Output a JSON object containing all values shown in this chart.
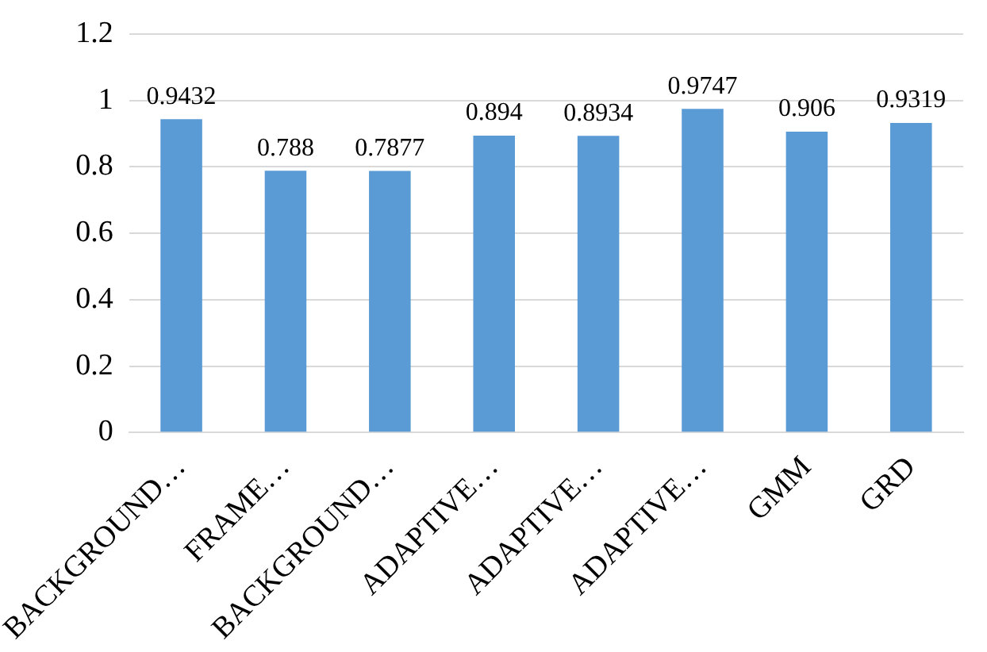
{
  "chart_data": {
    "type": "bar",
    "categories": [
      "BACKGROUND…",
      "FRAME…",
      "BACKGROUND…",
      "ADAPTIVE…",
      "ADAPTIVE…",
      "ADAPTIVE…",
      "GMM",
      "GRD"
    ],
    "values": [
      0.9432,
      0.788,
      0.7877,
      0.894,
      0.8934,
      0.9747,
      0.906,
      0.9319
    ],
    "color": "#5b9bd5",
    "ylim": [
      0,
      1.2
    ],
    "yticks": [
      0,
      0.2,
      0.4,
      0.6,
      0.8,
      1,
      1.2
    ],
    "grid": "y",
    "data_labels": true,
    "legend": false
  }
}
